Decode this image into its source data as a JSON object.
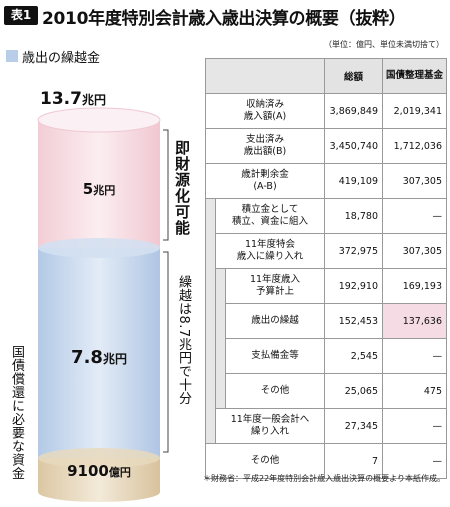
{
  "header": {
    "badge": "表1",
    "title": "2010年度特別会計歳入歳出決算の概要（抜粋）",
    "unit_note": "（単位：億円、単位未満切捨て）"
  },
  "legend": {
    "label": "歳出の繰越金",
    "color": "#b7cde8"
  },
  "cylinder": {
    "total_num": "13.7",
    "total_unit": "兆円",
    "segments": [
      {
        "num": "5",
        "unit": "兆円",
        "color": "#f7dde3"
      },
      {
        "num": "7.8",
        "unit": "兆円",
        "color": "#c8d8ee"
      },
      {
        "num": "9100",
        "unit": "億円",
        "color": "#e8d9bd"
      }
    ],
    "side_labels": {
      "available": "即財源化可能",
      "carryover": "繰越は8.7兆円で十分",
      "redemption": "国債償還に必要な資金"
    }
  },
  "table": {
    "headers": [
      "総額",
      "国債整理基金"
    ],
    "rows": [
      {
        "label": "収納済み\n歳入額(A)",
        "total": "3,869,849",
        "fund": "2,019,341"
      },
      {
        "label": "支出済み\n歳出額(B)",
        "total": "3,450,740",
        "fund": "1,712,036"
      },
      {
        "label": "歳計剰余金\n(A-B)",
        "total": "419,109",
        "fund": "307,305"
      },
      {
        "label": "積立金として\n積立、資金に組入",
        "total": "18,780",
        "fund": "—"
      },
      {
        "label": "11年度特会\n歳入に繰り入れ",
        "total": "372,975",
        "fund": "307,305"
      },
      {
        "label": "11年度歳入\n予算計上",
        "total": "192,910",
        "fund": "169,193"
      },
      {
        "label": "歳出の繰越",
        "total": "152,453",
        "fund": "137,636"
      },
      {
        "label": "支払備金等",
        "total": "2,545",
        "fund": "—"
      },
      {
        "label": "その他",
        "total": "25,065",
        "fund": "475"
      },
      {
        "label": "11年度一般会計へ\n繰り入れ",
        "total": "27,345",
        "fund": "—"
      },
      {
        "label": "その他",
        "total": "7",
        "fund": "—"
      }
    ]
  },
  "footnote": "＊財務省：平成22年度特別会計歳入歳出決算の概要より本紙作成。"
}
